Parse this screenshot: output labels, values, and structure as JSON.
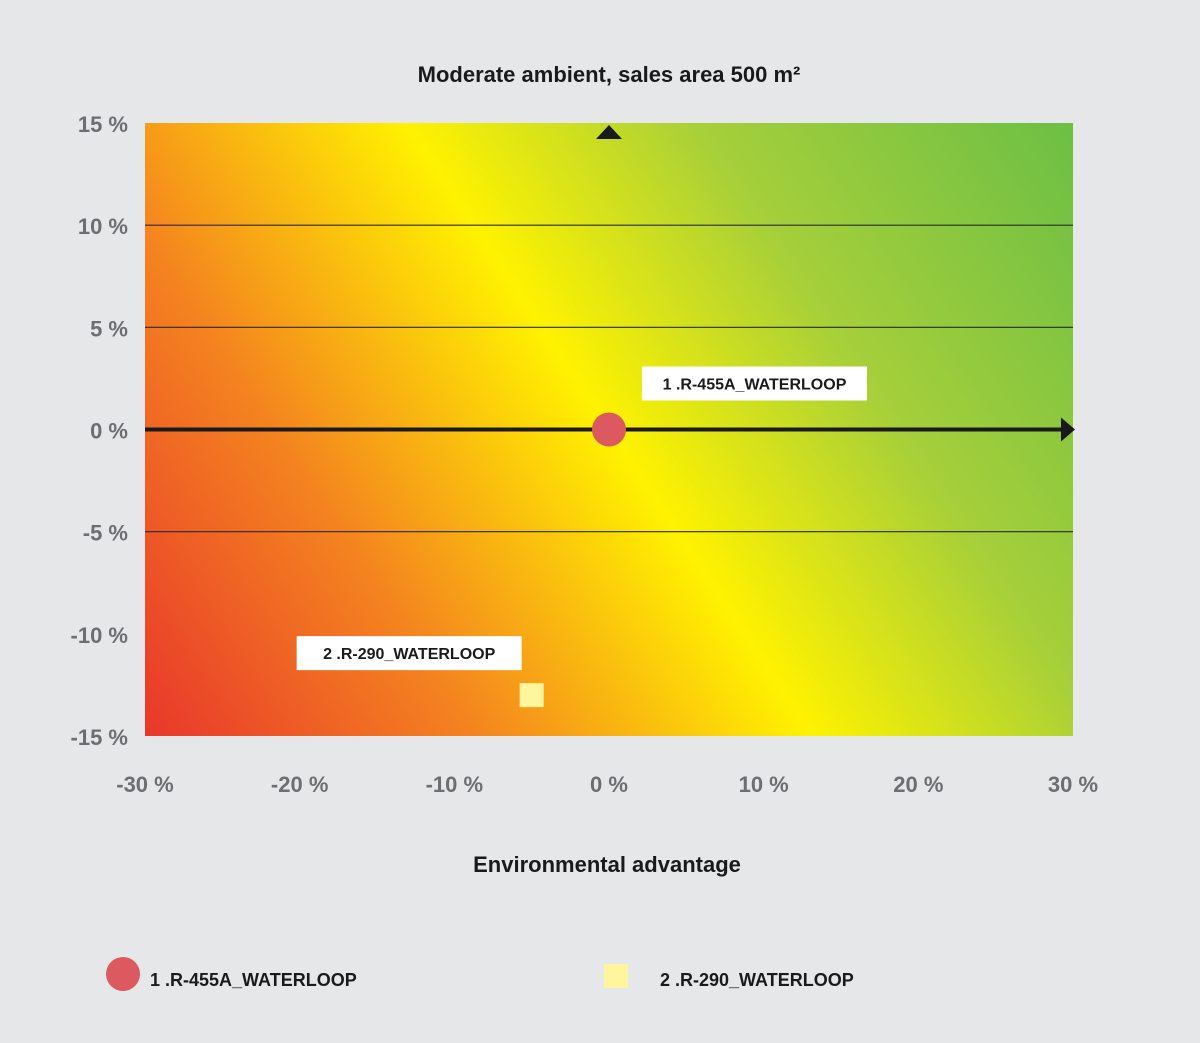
{
  "chart_data": {
    "type": "scatter",
    "title": "Moderate ambient, sales area 500 m²",
    "xlabel": "Environmental advantage",
    "ylabel": "",
    "xlim": [
      -30,
      30
    ],
    "ylim": [
      -15,
      15
    ],
    "x_ticks": [
      "-30 %",
      "-20 %",
      "-10 %",
      "0 %",
      "10 %",
      "20 %",
      "30 %"
    ],
    "y_ticks": [
      "15 %",
      "10 %",
      "5 %",
      "0 %",
      "-5 %",
      "-10 %",
      "-15 %"
    ],
    "grid": true,
    "background": "gradient from red (bottom-left) through yellow to green (top-right)",
    "series": [
      {
        "name": "1 .R-455A_WATERLOOP",
        "marker": "circle",
        "color": "#dc5a5f",
        "x": 0,
        "y": 0
      },
      {
        "name": "2 .R-290_WATERLOOP",
        "marker": "square",
        "color": "#fff59d",
        "x": -5,
        "y": -13
      }
    ],
    "legend": {
      "position": "bottom",
      "entries": [
        "1  .R-455A_WATERLOOP",
        "2  .R-290_WATERLOOP"
      ]
    }
  },
  "colors": {
    "page_background": "#e6e7e8",
    "gradient_red": "#e8372c",
    "gradient_orange": "#f7a21b",
    "gradient_yellow": "#fff200",
    "gradient_green": "#6cbf45",
    "marker_1": "#dc5a5f",
    "marker_2": "#fff59d"
  }
}
